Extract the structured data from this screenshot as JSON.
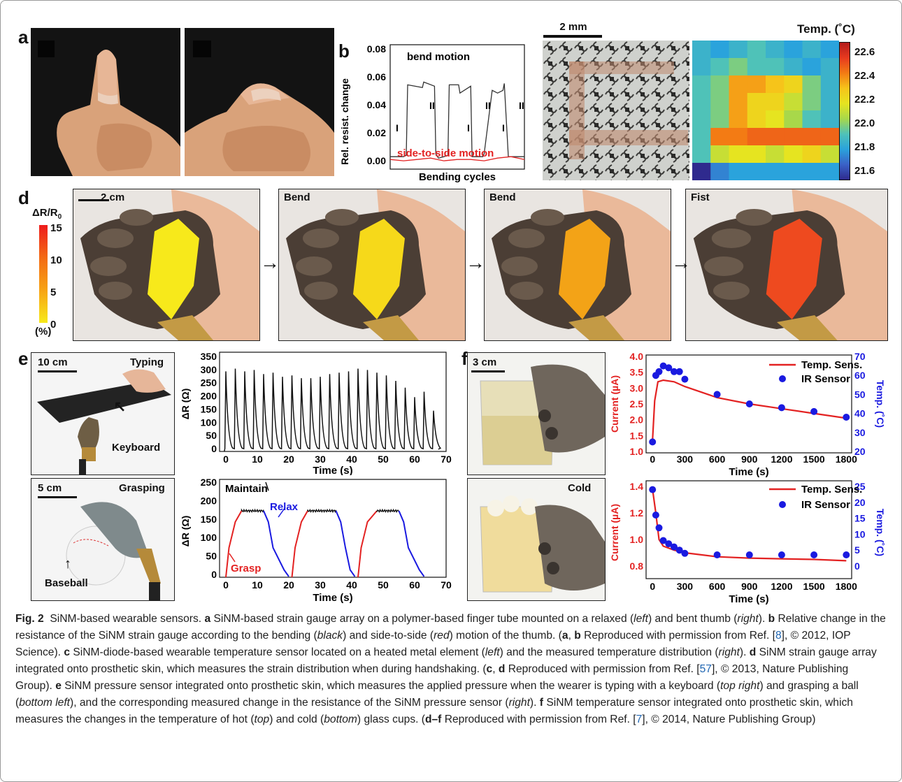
{
  "panels": {
    "a": {
      "label": "a"
    },
    "b": {
      "label": "b",
      "ylabel": "Rel. resist. change",
      "xlabel": "Bending cycles",
      "yticks": [
        "0.08",
        "0.06",
        "0.04",
        "0.02",
        "0.00"
      ],
      "bend_label": "bend motion",
      "side_label": "side-to-side motion",
      "phase_I": "I",
      "phase_II": "II"
    },
    "c": {
      "label": "c",
      "scale": "2 mm",
      "temp_title": "Temp. (˚C)",
      "colorbar_ticks": [
        "22.6",
        "22.4",
        "22.2",
        "22.0",
        "21.8",
        "21.6"
      ]
    },
    "d": {
      "label": "d",
      "scale": "2 cm",
      "legend_title": "ΔR/R",
      "legend_sub": "0",
      "legend_ticks": [
        "15",
        "10",
        "5",
        "0"
      ],
      "legend_unit": "(%)",
      "frames": [
        "",
        "Bend",
        "Bend",
        "Fist"
      ]
    },
    "e": {
      "label": "e",
      "typing_scale": "10 cm",
      "typing_label": "Typing",
      "keyboard": "Keyboard",
      "grasp_scale": "5 cm",
      "grasp_label": "Grasping",
      "baseball": "Baseball",
      "top_ylabel": "ΔR (Ω)",
      "top_xlabel": "Time (s)",
      "top_yticks": [
        "350",
        "300",
        "250",
        "200",
        "150",
        "100",
        "50",
        "0"
      ],
      "top_xticks": [
        "0",
        "10",
        "20",
        "30",
        "40",
        "50",
        "60",
        "70"
      ],
      "bot_ylabel": "ΔR (Ω)",
      "bot_xlabel": "Time (s)",
      "bot_yticks": [
        "250",
        "200",
        "150",
        "100",
        "50",
        "0"
      ],
      "bot_xticks": [
        "0",
        "10",
        "20",
        "30",
        "40",
        "50",
        "60",
        "70"
      ],
      "maintain": "Maintain",
      "relax": "Relax",
      "grasp": "Grasp"
    },
    "f": {
      "label": "f",
      "scale": "3 cm",
      "cold": "Cold",
      "top_left_ylabel": "Current (µA)",
      "top_right_ylabel": "Temp. (˚C)",
      "top_xlabel": "Time (s)",
      "top_left_ticks": [
        "4.0",
        "3.5",
        "3.0",
        "2.5",
        "2.0",
        "1.5",
        "1.0"
      ],
      "top_right_ticks": [
        "70",
        "60",
        "50",
        "40",
        "30",
        "20"
      ],
      "bot_left_ylabel": "Current (µA)",
      "bot_right_ylabel": "Temp. (˚C)",
      "bot_xlabel": "Time (s)",
      "bot_left_ticks": [
        "1.4",
        "1.2",
        "1.0",
        "0.8"
      ],
      "bot_right_ticks": [
        "25",
        "20",
        "15",
        "10",
        "5",
        "0"
      ],
      "xticks": [
        "0",
        "300",
        "600",
        "900",
        "1200",
        "1500",
        "1800"
      ],
      "legend_line": "Temp. Sens.",
      "legend_dot": "IR Sensor"
    }
  },
  "caption": {
    "fig": "Fig. 2",
    "intro": "SiNM-based wearable sensors.",
    "a_txt": "SiNM-based strain gauge array on a polymer-based finger tube mounted on a relaxed (",
    "left": "left",
    "a_txt2": ") and bent thumb (",
    "right": "right",
    "a_txt3": ").",
    "b_txt": "Relative change in the resistance of the SiNM strain gauge according to the bending (",
    "black": "black",
    "b_txt2": ") and side-to-side (",
    "red": "red",
    "b_txt3": ") motion of the thumb. (",
    "ab": "a",
    "comma": ", ",
    "bb": "b",
    "ref8_pre": " Reproduced with permission from Ref. [",
    "ref8": "8",
    "ref8_post": "], © 2012, IOP Science).",
    "c_txt": "SiNM-diode-based wearable temperature sensor located on a heated metal element (",
    "c_txt2": ") and the measured temperature distribution (",
    "c_txt3": ").",
    "d_txt": "SiNM strain gauge array integrated onto prosthetic skin, which measures the strain distribution when during handshaking. (",
    "cd_c": "c",
    "cd_d": "d",
    "ref57_pre": " Reproduced with permission from Ref. [",
    "ref57": "57",
    "ref57_post": "], © 2013, Nature Publishing Group).",
    "e_txt": "SiNM pressure sensor integrated onto prosthetic skin, which measures the applied pressure when the wearer is typing with a keyboard (",
    "top_right": "top right",
    "e_txt2": ") and grasping a ball (",
    "bottom_left": "bottom left",
    "e_txt3": "), and the corresponding measured change in the resistance of the SiNM pressure sensor (",
    "e_txt4": ").",
    "f_txt": "SiNM temperature sensor integrated onto prosthetic skin, which measures the changes in the temperature of hot (",
    "top": "top",
    "f_txt2": ") and cold (",
    "bottom": "bottom",
    "f_txt3": ") glass cups. (",
    "df": "d–f",
    "ref7_pre": " Reproduced with permission from Ref. [",
    "ref7": "7",
    "ref7_post": "], © 2014, Nature Publishing Group)"
  },
  "colors": {
    "red": "#e32222",
    "blue": "#1a1ae0",
    "black": "#111111",
    "link": "#1f66b3"
  },
  "chart_data": [
    {
      "type": "line",
      "panel": "b",
      "xlabel": "Bending cycles",
      "ylabel": "Rel. resist. change",
      "ylim": [
        -0.005,
        0.08
      ],
      "series": [
        {
          "name": "bend motion",
          "x": [
            0,
            6,
            10,
            12,
            13,
            24,
            25,
            33,
            34,
            36,
            40,
            43,
            44,
            51,
            52,
            60,
            61,
            69,
            70,
            76,
            80,
            84,
            85,
            88,
            100
          ],
          "values": [
            0.004,
            0.004,
            0.004,
            0.005,
            0.056,
            0.054,
            0.058,
            0.055,
            0.006,
            0.003,
            0.004,
            0.005,
            0.056,
            0.056,
            0.05,
            0.055,
            0.004,
            0.004,
            0.006,
            0.052,
            0.05,
            0.052,
            0.057,
            0.004,
            0.004
          ]
        },
        {
          "name": "side-to-side motion",
          "x": [
            0,
            10,
            20,
            30,
            40,
            50,
            60,
            70,
            80,
            90,
            100
          ],
          "values": [
            0.002,
            0.001,
            0.002,
            0.003,
            0.001,
            0.002,
            0.002,
            0.001,
            0.003,
            0.004,
            0.002
          ]
        }
      ]
    },
    {
      "type": "heatmap",
      "panel": "c",
      "rows": 8,
      "cols": 8,
      "values": [
        [
          21.9,
          21.85,
          21.9,
          21.95,
          21.9,
          21.85,
          21.9,
          21.85
        ],
        [
          21.9,
          21.95,
          22.0,
          21.95,
          21.95,
          21.9,
          21.85,
          21.9
        ],
        [
          21.95,
          22.0,
          22.3,
          22.3,
          22.25,
          22.2,
          22.0,
          21.9
        ],
        [
          21.95,
          22.0,
          22.3,
          22.2,
          22.2,
          22.1,
          22.0,
          21.9
        ],
        [
          21.95,
          22.0,
          22.3,
          22.2,
          22.15,
          22.05,
          21.95,
          21.9
        ],
        [
          21.95,
          22.35,
          22.35,
          22.4,
          22.4,
          22.4,
          22.4,
          22.4
        ],
        [
          21.95,
          22.1,
          22.15,
          22.15,
          22.1,
          22.15,
          22.2,
          22.1
        ],
        [
          21.6,
          21.8,
          21.85,
          21.85,
          21.85,
          21.85,
          21.85,
          21.85
        ]
      ]
    },
    {
      "type": "line",
      "panel": "e-top",
      "xlabel": "Time (s)",
      "ylabel": "ΔR (Ω)",
      "xlim": [
        -2,
        70
      ],
      "ylim": [
        0,
        350
      ],
      "series": [
        {
          "name": "",
          "x": [
            0,
            3,
            6,
            9,
            12,
            15,
            18,
            21,
            24,
            27,
            30,
            33,
            36,
            39,
            42,
            45,
            48,
            51,
            54,
            57,
            60,
            63,
            66
          ],
          "values": [
            295,
            305,
            295,
            300,
            285,
            290,
            275,
            280,
            270,
            270,
            275,
            285,
            290,
            295,
            305,
            300,
            290,
            280,
            260,
            235,
            200,
            220,
            150
          ]
        }
      ]
    },
    {
      "type": "line",
      "panel": "e-bottom",
      "xlabel": "Time (s)",
      "ylabel": "ΔR (Ω)",
      "xlim": [
        -2,
        70
      ],
      "ylim": [
        0,
        250
      ],
      "series": [
        {
          "name": "Grasp",
          "x": [
            0,
            1,
            3,
            5,
            21,
            22,
            24,
            26,
            42,
            43,
            45,
            48
          ],
          "values": [
            0,
            80,
            120,
            180,
            0,
            100,
            160,
            180,
            0,
            100,
            160,
            180
          ]
        },
        {
          "name": "Maintain",
          "x": [
            5,
            12,
            26,
            35,
            48,
            55
          ],
          "values": [
            180,
            180,
            180,
            180,
            180,
            180
          ]
        },
        {
          "name": "Relax",
          "x": [
            12,
            15,
            20,
            35,
            38,
            41,
            55,
            58,
            63
          ],
          "values": [
            180,
            80,
            0,
            180,
            60,
            0,
            180,
            60,
            0
          ]
        }
      ]
    },
    {
      "type": "line",
      "panel": "f-top",
      "xlabel": "Time (s)",
      "ylim": [
        1.0,
        4.0
      ],
      "y2lim": [
        20,
        70
      ],
      "xlim": [
        -60,
        1850
      ],
      "series": [
        {
          "name": "Temp. Sens.",
          "x": [
            0,
            20,
            50,
            100,
            200,
            300,
            600,
            900,
            1200,
            1500,
            1800
          ],
          "values": [
            1.35,
            2.6,
            3.2,
            3.25,
            3.2,
            3.05,
            2.7,
            2.5,
            2.35,
            2.2,
            2.05
          ]
        },
        {
          "name": "IR Sensor",
          "x": [
            0,
            30,
            60,
            100,
            150,
            200,
            250,
            300,
            600,
            900,
            1200,
            1500,
            1800
          ],
          "values": [
            25,
            60,
            62,
            65,
            64,
            62,
            62,
            58,
            50,
            45,
            43,
            41,
            38
          ]
        }
      ]
    },
    {
      "type": "line",
      "panel": "f-bottom",
      "xlabel": "Time (s)",
      "ylim": [
        0.7,
        1.45
      ],
      "y2lim": [
        -3,
        27
      ],
      "xlim": [
        -60,
        1850
      ],
      "series": [
        {
          "name": "Temp. Sens.",
          "x": [
            0,
            30,
            60,
            100,
            200,
            300,
            600,
            900,
            1200,
            1500,
            1800
          ],
          "values": [
            1.38,
            1.2,
            1.0,
            0.95,
            0.92,
            0.9,
            0.87,
            0.86,
            0.855,
            0.85,
            0.84
          ]
        },
        {
          "name": "IR Sensor",
          "x": [
            0,
            30,
            60,
            100,
            150,
            200,
            250,
            300,
            600,
            900,
            1200,
            1500,
            1800
          ],
          "values": [
            24,
            16,
            12,
            8,
            7,
            6,
            5,
            4,
            3.5,
            3.5,
            3.5,
            3.5,
            3.5
          ]
        }
      ]
    }
  ]
}
